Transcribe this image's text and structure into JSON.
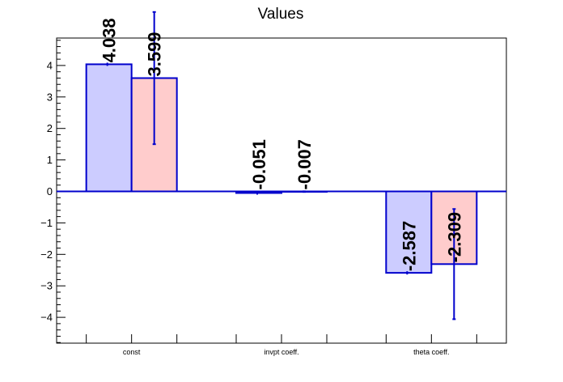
{
  "chart_data": {
    "type": "bar",
    "title": "Values",
    "xlabel": "",
    "ylabel": "",
    "categories": [
      "const",
      "invpt coeff.",
      "theta coeff."
    ],
    "ylim": [
      -4.9,
      4.9
    ],
    "yticks": [
      -4,
      -3,
      -2,
      -1,
      0,
      1,
      2,
      3,
      4
    ],
    "ytick_labels": [
      "−4",
      "−3",
      "−2",
      "−1",
      "0",
      "1",
      "2",
      "3",
      "4"
    ],
    "grid": false,
    "series": [
      {
        "values": [
          4.038,
          -0.051,
          -2.587
        ],
        "labels": [
          "4.038",
          "-0.051",
          "-2.587"
        ],
        "fill": "#ccccff",
        "edge": "#0000cc",
        "errors": [
          0.0,
          0.0,
          0.0
        ]
      },
      {
        "values": [
          3.599,
          -0.007,
          -2.309
        ],
        "labels": [
          "3.599",
          "-0.007",
          "-2.309"
        ],
        "fill": "#ffcccc",
        "edge": "#0000cc",
        "errors": [
          2.1,
          0.01,
          1.75
        ]
      }
    ]
  }
}
